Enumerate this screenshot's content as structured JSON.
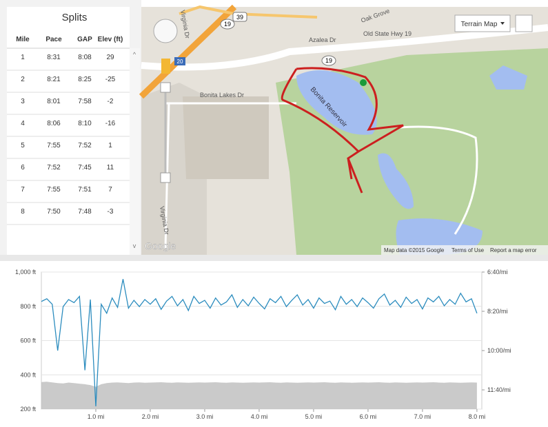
{
  "splits": {
    "title": "Splits",
    "columns": [
      "Mile",
      "Pace",
      "GAP",
      "Elev (ft)"
    ],
    "rows": [
      [
        "1",
        "8:31",
        "8:08",
        "29"
      ],
      [
        "2",
        "8:21",
        "8:25",
        "-25"
      ],
      [
        "3",
        "8:01",
        "7:58",
        "-2"
      ],
      [
        "4",
        "8:06",
        "8:10",
        "-16"
      ],
      [
        "5",
        "7:55",
        "7:52",
        "1"
      ],
      [
        "6",
        "7:52",
        "7:45",
        "11"
      ],
      [
        "7",
        "7:55",
        "7:51",
        "7"
      ],
      [
        "8",
        "7:50",
        "7:48",
        "-3"
      ]
    ]
  },
  "map": {
    "map_type": "Terrain Map",
    "roads": [
      "Azalea Dr",
      "Old State Hwy 19",
      "Oak Grove",
      "Bonita Lakes Dr",
      "Virginia Dr",
      "Virginia Dr",
      "Bonita Reservoir"
    ],
    "shields": [
      "39",
      "19",
      "19",
      "20"
    ],
    "logo": "Google",
    "footer": [
      "Map data ©2015 Google",
      "Terms of Use",
      "Report a map error"
    ]
  },
  "chart_data": {
    "type": "line",
    "x": [
      0.0,
      0.1,
      0.2,
      0.3,
      0.4,
      0.5,
      0.6,
      0.7,
      0.8,
      0.9,
      1.0,
      1.1,
      1.2,
      1.3,
      1.4,
      1.5,
      1.6,
      1.7,
      1.8,
      1.9,
      2.0,
      2.1,
      2.2,
      2.3,
      2.4,
      2.5,
      2.6,
      2.7,
      2.8,
      2.9,
      3.0,
      3.1,
      3.2,
      3.3,
      3.4,
      3.5,
      3.6,
      3.7,
      3.8,
      3.9,
      4.0,
      4.1,
      4.2,
      4.3,
      4.4,
      4.5,
      4.6,
      4.7,
      4.8,
      4.9,
      5.0,
      5.1,
      5.2,
      5.3,
      5.4,
      5.5,
      5.6,
      5.7,
      5.8,
      5.9,
      6.0,
      6.1,
      6.2,
      6.3,
      6.4,
      6.5,
      6.6,
      6.7,
      6.8,
      6.9,
      7.0,
      7.1,
      7.2,
      7.3,
      7.4,
      7.5,
      7.6,
      7.7,
      7.8,
      7.9,
      8.0
    ],
    "series": [
      {
        "type": "area",
        "color": "#bdbdbd",
        "values": [
          358,
          360,
          356,
          352,
          350,
          355,
          352,
          348,
          345,
          340,
          330,
          345,
          352,
          355,
          356,
          354,
          352,
          355,
          356,
          354,
          355,
          356,
          357,
          355,
          354,
          356,
          355,
          354,
          355,
          356,
          355,
          356,
          357,
          355,
          354,
          356,
          355,
          354,
          355,
          356,
          355,
          356,
          357,
          355,
          354,
          356,
          355,
          354,
          355,
          356,
          355,
          356,
          357,
          355,
          354,
          356,
          355,
          354,
          355,
          356,
          355,
          356,
          357,
          355,
          354,
          356,
          355,
          354,
          355,
          356,
          355,
          356,
          357,
          355,
          354,
          356,
          355,
          354,
          355,
          356,
          355
        ]
      },
      {
        "type": "line",
        "color": "#2b8cbe",
        "axis": "y2",
        "values": [
          475,
          468,
          482,
          600,
          488,
          470,
          478,
          462,
          650,
          470,
          742,
          482,
          505,
          466,
          490,
          418,
          492,
          472,
          488,
          470,
          482,
          468,
          495,
          474,
          462,
          486,
          470,
          498,
          462,
          480,
          472,
          492,
          466,
          484,
          476,
          458,
          490,
          470,
          486,
          464,
          480,
          494,
          468,
          478,
          462,
          488,
          472,
          458,
          484,
          470,
          492,
          466,
          480,
          474,
          496,
          462,
          482,
          470,
          488,
          466,
          478,
          492,
          468,
          456,
          484,
          472,
          490,
          464,
          480,
          470,
          494,
          466,
          476,
          462,
          486,
          470,
          482,
          454,
          476,
          468,
          505
        ]
      }
    ],
    "xlim": [
      0,
      8.09
    ],
    "xticks": [
      {
        "value": 1,
        "label": "1.0 mi"
      },
      {
        "value": 2,
        "label": "2.0 mi"
      },
      {
        "value": 3,
        "label": "3.0 mi"
      },
      {
        "value": 4,
        "label": "4.0 mi"
      },
      {
        "value": 5,
        "label": "5.0 mi"
      },
      {
        "value": 6,
        "label": "6.0 mi"
      },
      {
        "value": 7,
        "label": "7.0 mi"
      },
      {
        "value": 8,
        "label": "8.0 mi"
      }
    ],
    "ylim": [
      200,
      1000
    ],
    "yticks": [
      {
        "value": 200,
        "label": "200 ft"
      },
      {
        "value": 400,
        "label": "400 ft"
      },
      {
        "value": 600,
        "label": "600 ft"
      },
      {
        "value": 800,
        "label": "800 ft"
      },
      {
        "value": 1000,
        "label": "1,000 ft"
      }
    ],
    "y2lim": [
      749,
      400
    ],
    "y2ticks": [
      {
        "value": 400,
        "label": "6:40/mi"
      },
      {
        "value": 500,
        "label": "8:20/mi"
      },
      {
        "value": 600,
        "label": "10:00/mi"
      },
      {
        "value": 700,
        "label": "11:40/mi"
      }
    ],
    "grid": true
  }
}
